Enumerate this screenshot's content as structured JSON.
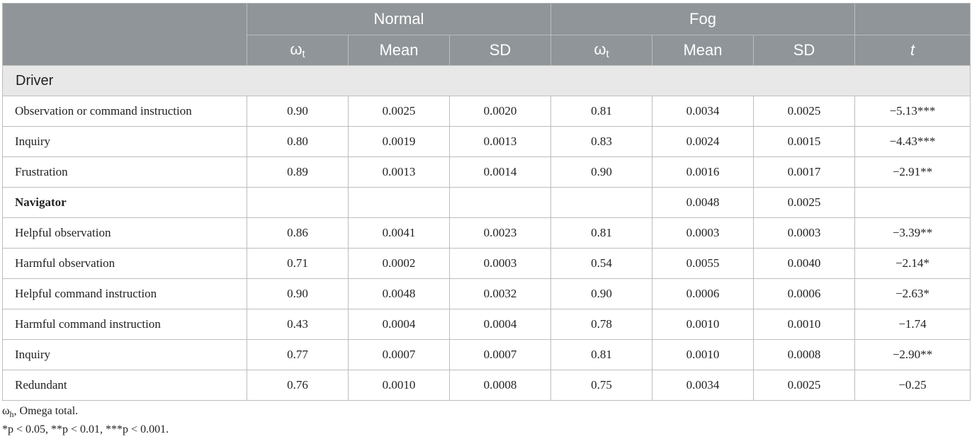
{
  "header": {
    "groups": [
      "Normal",
      "Fog"
    ],
    "omega_symbol": "ω",
    "omega_subscript": "t",
    "cols": [
      "Mean",
      "SD"
    ],
    "t_label": "t"
  },
  "section": "Driver",
  "rows": [
    {
      "label": "Observation or command instruction",
      "cells": [
        "0.90",
        "0.0025",
        "0.0020",
        "0.81",
        "0.0034",
        "0.0025",
        "−5.13***"
      ]
    },
    {
      "label": "Inquiry",
      "cells": [
        "0.80",
        "0.0019",
        "0.0013",
        "0.83",
        "0.0024",
        "0.0015",
        "−4.43***"
      ]
    },
    {
      "label": "Frustration",
      "cells": [
        "0.89",
        "0.0013",
        "0.0014",
        "0.90",
        "0.0016",
        "0.0017",
        "−2.91**"
      ]
    },
    {
      "label": "Navigator",
      "cells": [
        "",
        "",
        "",
        "",
        "0.0048",
        "0.0025",
        ""
      ]
    },
    {
      "label": "Helpful observation",
      "cells": [
        "0.86",
        "0.0041",
        "0.0023",
        "0.81",
        "0.0003",
        "0.0003",
        "−3.39**"
      ]
    },
    {
      "label": "Harmful observation",
      "cells": [
        "0.71",
        "0.0002",
        "0.0003",
        "0.54",
        "0.0055",
        "0.0040",
        "−2.14*"
      ]
    },
    {
      "label": "Helpful command instruction",
      "cells": [
        "0.90",
        "0.0048",
        "0.0032",
        "0.90",
        "0.0006",
        "0.0006",
        "−2.63*"
      ]
    },
    {
      "label": "Harmful command instruction",
      "cells": [
        "0.43",
        "0.0004",
        "0.0004",
        "0.78",
        "0.0010",
        "0.0010",
        "−1.74"
      ]
    },
    {
      "label": "Inquiry",
      "cells": [
        "0.77",
        "0.0007",
        "0.0007",
        "0.81",
        "0.0010",
        "0.0008",
        "−2.90**"
      ]
    },
    {
      "label": "Redundant",
      "cells": [
        "0.76",
        "0.0010",
        "0.0008",
        "0.75",
        "0.0034",
        "0.0025",
        "−0.25"
      ]
    }
  ],
  "notes": {
    "omega_symbol": "ω",
    "omega_subscript": "h",
    "omega_text": ", Omega total.",
    "significance": "*p < 0.05, **p < 0.01, ***p < 0.001."
  }
}
